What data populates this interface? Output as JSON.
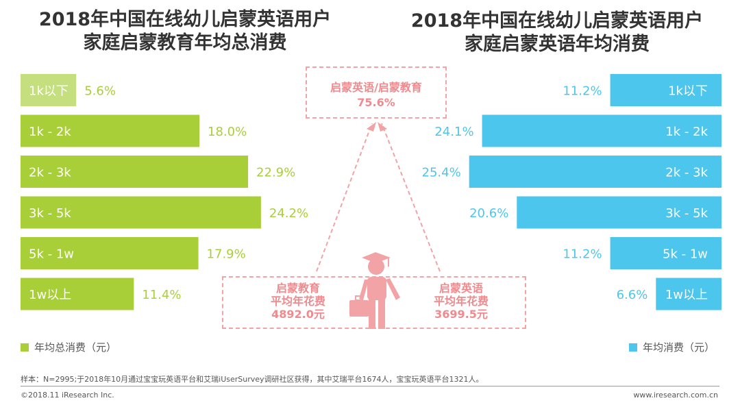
{
  "left_title": {
    "line1": "2018年中国在线幼儿启蒙英语用户",
    "line2": "家庭启蒙教育年均总消费"
  },
  "right_title": {
    "line1": "2018年中国在线幼儿启蒙英语用户",
    "line2": "家庭启蒙英语年均消费"
  },
  "legend": {
    "left": "年均总消费（元）",
    "right": "年均消费（元）"
  },
  "callout": {
    "ratio_label": "启蒙英语/启蒙教育",
    "ratio_value": "75.6%",
    "edu": {
      "l1": "启蒙教育",
      "l2": "平均年花费",
      "l3": "4892.0元"
    },
    "eng": {
      "l1": "启蒙英语",
      "l2": "平均年花费",
      "l3": "3699.5元"
    }
  },
  "note": "样本：N=2995;于2018年10月通过宝宝玩英语平台和艾瑞iUserSurvey调研社区获得，其中艾瑞平台1674人，宝宝玩英语平台1321人。",
  "copyright": "©2018.11 iResearch Inc.",
  "website": "www.iresearch.com.cn",
  "colors": {
    "green": "#a9cf38",
    "green_light": "#c5df7e",
    "blue": "#4dc6ee",
    "pink": "#f2a3a6",
    "text_pink": "#f08a8e"
  },
  "chart_data": [
    {
      "type": "bar",
      "orientation": "horizontal",
      "title": "2018年中国在线幼儿启蒙英语用户家庭启蒙教育年均总消费",
      "legend": "年均总消费（元）",
      "unit": "%",
      "categories": [
        "1k以下",
        "1k - 2k",
        "2k - 3k",
        "3k - 5k",
        "5k - 1w",
        "1w以上"
      ],
      "values": [
        5.6,
        18.0,
        22.9,
        24.2,
        17.9,
        11.4
      ],
      "labels": [
        "5.6%",
        "18.0%",
        "22.9%",
        "24.2%",
        "17.9%",
        "11.4%"
      ],
      "xlim": [
        0,
        30
      ]
    },
    {
      "type": "bar",
      "orientation": "horizontal",
      "title": "2018年中国在线幼儿启蒙英语用户家庭启蒙英语年均消费",
      "legend": "年均消费（元）",
      "unit": "%",
      "categories": [
        "1k以下",
        "1k - 2k",
        "2k - 3k",
        "3k - 5k",
        "5k - 1w",
        "1w以上"
      ],
      "values": [
        11.2,
        24.1,
        25.4,
        20.6,
        11.2,
        6.6
      ],
      "labels": [
        "11.2%",
        "24.1%",
        "25.4%",
        "20.6%",
        "11.2%",
        "6.6%"
      ],
      "xlim": [
        0,
        30
      ]
    }
  ]
}
